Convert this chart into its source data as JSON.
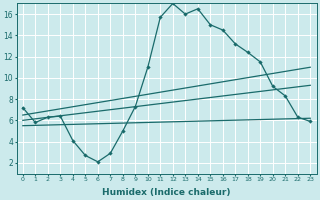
{
  "xlabel": "Humidex (Indice chaleur)",
  "background_color": "#cceaec",
  "grid_color": "#ffffff",
  "line_color": "#1a6b6b",
  "xlim": [
    -0.5,
    23.5
  ],
  "ylim": [
    1,
    17
  ],
  "xticks": [
    0,
    1,
    2,
    3,
    4,
    5,
    6,
    7,
    8,
    9,
    10,
    11,
    12,
    13,
    14,
    15,
    16,
    17,
    18,
    19,
    20,
    21,
    22,
    23
  ],
  "yticks": [
    2,
    4,
    6,
    8,
    10,
    12,
    14,
    16
  ],
  "line1_x": [
    0,
    1,
    2,
    3,
    4,
    5,
    6,
    7,
    8,
    9,
    10,
    11,
    12,
    13,
    14,
    15,
    16,
    17,
    18,
    19,
    20,
    21,
    22,
    23
  ],
  "line1_y": [
    7.2,
    5.8,
    6.3,
    6.4,
    4.1,
    2.7,
    2.1,
    2.9,
    5.0,
    7.3,
    11.0,
    15.7,
    17.0,
    16.0,
    16.5,
    15.0,
    14.5,
    13.2,
    12.4,
    11.5,
    9.2,
    8.3,
    6.3,
    5.9
  ],
  "line2_x": [
    0,
    23
  ],
  "line2_y": [
    6.5,
    11.0
  ],
  "line3_x": [
    0,
    23
  ],
  "line3_y": [
    6.0,
    9.3
  ],
  "line4_x": [
    0,
    23
  ],
  "line4_y": [
    5.5,
    6.2
  ]
}
